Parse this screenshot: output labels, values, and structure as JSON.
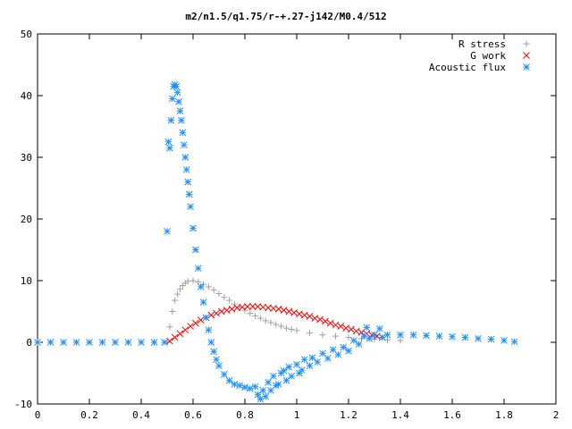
{
  "chart_data": {
    "type": "scatter",
    "title": "m2/n1.5/q1.75/r-+.27-j142/M0.4/512",
    "xlabel": "",
    "ylabel": "",
    "xlim": [
      0,
      2
    ],
    "ylim": [
      -10,
      50
    ],
    "xticks": [
      "0",
      "0.2",
      "0.4",
      "0.6",
      "0.8",
      "1",
      "1.2",
      "1.4",
      "1.6",
      "1.8",
      "2"
    ],
    "yticks": [
      "-10",
      "0",
      "10",
      "20",
      "30",
      "40",
      "50"
    ],
    "grid": false,
    "legend_position": "top-right",
    "series": [
      {
        "name": "R stress",
        "color": "#a0a0a0",
        "marker": "plus",
        "points": [
          [
            0.5,
            0.0
          ],
          [
            0.51,
            2.5
          ],
          [
            0.52,
            5.0
          ],
          [
            0.53,
            6.8
          ],
          [
            0.54,
            7.8
          ],
          [
            0.55,
            8.6
          ],
          [
            0.56,
            9.2
          ],
          [
            0.57,
            9.6
          ],
          [
            0.58,
            9.9
          ],
          [
            0.6,
            10.0
          ],
          [
            0.62,
            9.8
          ],
          [
            0.64,
            9.4
          ],
          [
            0.66,
            9.0
          ],
          [
            0.68,
            8.5
          ],
          [
            0.7,
            7.9
          ],
          [
            0.72,
            7.3
          ],
          [
            0.74,
            6.8
          ],
          [
            0.76,
            6.2
          ],
          [
            0.78,
            5.7
          ],
          [
            0.8,
            5.2
          ],
          [
            0.82,
            4.7
          ],
          [
            0.84,
            4.3
          ],
          [
            0.86,
            3.9
          ],
          [
            0.88,
            3.5
          ],
          [
            0.9,
            3.2
          ],
          [
            0.92,
            2.9
          ],
          [
            0.94,
            2.6
          ],
          [
            0.96,
            2.3
          ],
          [
            0.98,
            2.1
          ],
          [
            1.0,
            1.9
          ],
          [
            1.05,
            1.5
          ],
          [
            1.1,
            1.2
          ],
          [
            1.15,
            1.0
          ],
          [
            1.2,
            0.8
          ],
          [
            1.25,
            0.6
          ],
          [
            1.3,
            0.5
          ],
          [
            1.35,
            0.4
          ],
          [
            1.4,
            0.3
          ]
        ]
      },
      {
        "name": "G work",
        "color": "#ff0000",
        "marker": "cross",
        "points": [
          [
            0.51,
            0.2
          ],
          [
            0.53,
            0.8
          ],
          [
            0.55,
            1.4
          ],
          [
            0.57,
            2.0
          ],
          [
            0.59,
            2.6
          ],
          [
            0.61,
            3.1
          ],
          [
            0.63,
            3.6
          ],
          [
            0.65,
            4.0
          ],
          [
            0.67,
            4.4
          ],
          [
            0.69,
            4.7
          ],
          [
            0.71,
            5.0
          ],
          [
            0.73,
            5.2
          ],
          [
            0.75,
            5.4
          ],
          [
            0.77,
            5.6
          ],
          [
            0.79,
            5.7
          ],
          [
            0.81,
            5.8
          ],
          [
            0.83,
            5.8
          ],
          [
            0.85,
            5.8
          ],
          [
            0.87,
            5.7
          ],
          [
            0.89,
            5.6
          ],
          [
            0.91,
            5.5
          ],
          [
            0.93,
            5.4
          ],
          [
            0.95,
            5.2
          ],
          [
            0.97,
            5.0
          ],
          [
            0.99,
            4.8
          ],
          [
            1.01,
            4.6
          ],
          [
            1.03,
            4.4
          ],
          [
            1.05,
            4.2
          ],
          [
            1.07,
            3.9
          ],
          [
            1.09,
            3.7
          ],
          [
            1.11,
            3.4
          ],
          [
            1.13,
            3.1
          ],
          [
            1.15,
            2.8
          ],
          [
            1.17,
            2.6
          ],
          [
            1.19,
            2.3
          ],
          [
            1.21,
            2.1
          ],
          [
            1.23,
            1.8
          ],
          [
            1.25,
            1.6
          ],
          [
            1.27,
            1.4
          ],
          [
            1.29,
            1.2
          ],
          [
            1.31,
            1.0
          ],
          [
            1.33,
            0.8
          ]
        ]
      },
      {
        "name": "Acoustic flux",
        "color": "#1e90ff",
        "marker": "star",
        "points": [
          [
            0.0,
            0.0
          ],
          [
            0.05,
            0.0
          ],
          [
            0.1,
            0.0
          ],
          [
            0.15,
            0.0
          ],
          [
            0.2,
            0.0
          ],
          [
            0.25,
            0.0
          ],
          [
            0.3,
            0.0
          ],
          [
            0.35,
            0.0
          ],
          [
            0.4,
            0.0
          ],
          [
            0.45,
            0.0
          ],
          [
            0.49,
            0.0
          ],
          [
            0.5,
            18.0
          ],
          [
            0.505,
            32.5
          ],
          [
            0.51,
            31.5
          ],
          [
            0.515,
            36.0
          ],
          [
            0.52,
            39.5
          ],
          [
            0.525,
            41.5
          ],
          [
            0.53,
            41.8
          ],
          [
            0.535,
            41.5
          ],
          [
            0.54,
            40.5
          ],
          [
            0.545,
            39.0
          ],
          [
            0.55,
            37.5
          ],
          [
            0.555,
            36.0
          ],
          [
            0.56,
            34.0
          ],
          [
            0.565,
            32.0
          ],
          [
            0.57,
            30.0
          ],
          [
            0.575,
            28.0
          ],
          [
            0.58,
            26.0
          ],
          [
            0.585,
            24.0
          ],
          [
            0.59,
            22.0
          ],
          [
            0.6,
            18.5
          ],
          [
            0.61,
            15.0
          ],
          [
            0.62,
            12.0
          ],
          [
            0.63,
            9.0
          ],
          [
            0.64,
            6.5
          ],
          [
            0.65,
            4.0
          ],
          [
            0.66,
            2.0
          ],
          [
            0.67,
            0.0
          ],
          [
            0.68,
            -1.5
          ],
          [
            0.69,
            -2.8
          ],
          [
            0.7,
            -3.8
          ],
          [
            0.72,
            -5.2
          ],
          [
            0.74,
            -6.2
          ],
          [
            0.76,
            -6.8
          ],
          [
            0.78,
            -7.0
          ],
          [
            0.8,
            -7.3
          ],
          [
            0.82,
            -7.5
          ],
          [
            0.84,
            -7.2
          ],
          [
            0.85,
            -8.5
          ],
          [
            0.86,
            -9.2
          ],
          [
            0.87,
            -7.8
          ],
          [
            0.88,
            -8.8
          ],
          [
            0.89,
            -6.5
          ],
          [
            0.9,
            -7.8
          ],
          [
            0.91,
            -5.5
          ],
          [
            0.92,
            -7.0
          ],
          [
            0.93,
            -6.8
          ],
          [
            0.94,
            -5.0
          ],
          [
            0.95,
            -4.6
          ],
          [
            0.96,
            -6.2
          ],
          [
            0.97,
            -4.0
          ],
          [
            0.98,
            -5.5
          ],
          [
            1.0,
            -3.6
          ],
          [
            1.01,
            -5.0
          ],
          [
            1.02,
            -4.5
          ],
          [
            1.03,
            -2.8
          ],
          [
            1.05,
            -3.8
          ],
          [
            1.06,
            -2.5
          ],
          [
            1.08,
            -3.2
          ],
          [
            1.1,
            -1.8
          ],
          [
            1.12,
            -2.6
          ],
          [
            1.14,
            -1.2
          ],
          [
            1.16,
            -2.0
          ],
          [
            1.18,
            -0.8
          ],
          [
            1.2,
            -1.4
          ],
          [
            1.22,
            0.3
          ],
          [
            1.24,
            -0.3
          ],
          [
            1.26,
            1.0
          ],
          [
            1.27,
            2.4
          ],
          [
            1.28,
            0.6
          ],
          [
            1.3,
            1.2
          ],
          [
            1.32,
            2.2
          ],
          [
            1.33,
            0.8
          ],
          [
            1.35,
            1.2
          ],
          [
            1.4,
            1.2
          ],
          [
            1.45,
            1.2
          ],
          [
            1.5,
            1.1
          ],
          [
            1.55,
            1.0
          ],
          [
            1.6,
            0.9
          ],
          [
            1.65,
            0.8
          ],
          [
            1.7,
            0.6
          ],
          [
            1.75,
            0.5
          ],
          [
            1.8,
            0.3
          ],
          [
            1.84,
            0.1
          ]
        ]
      }
    ]
  }
}
